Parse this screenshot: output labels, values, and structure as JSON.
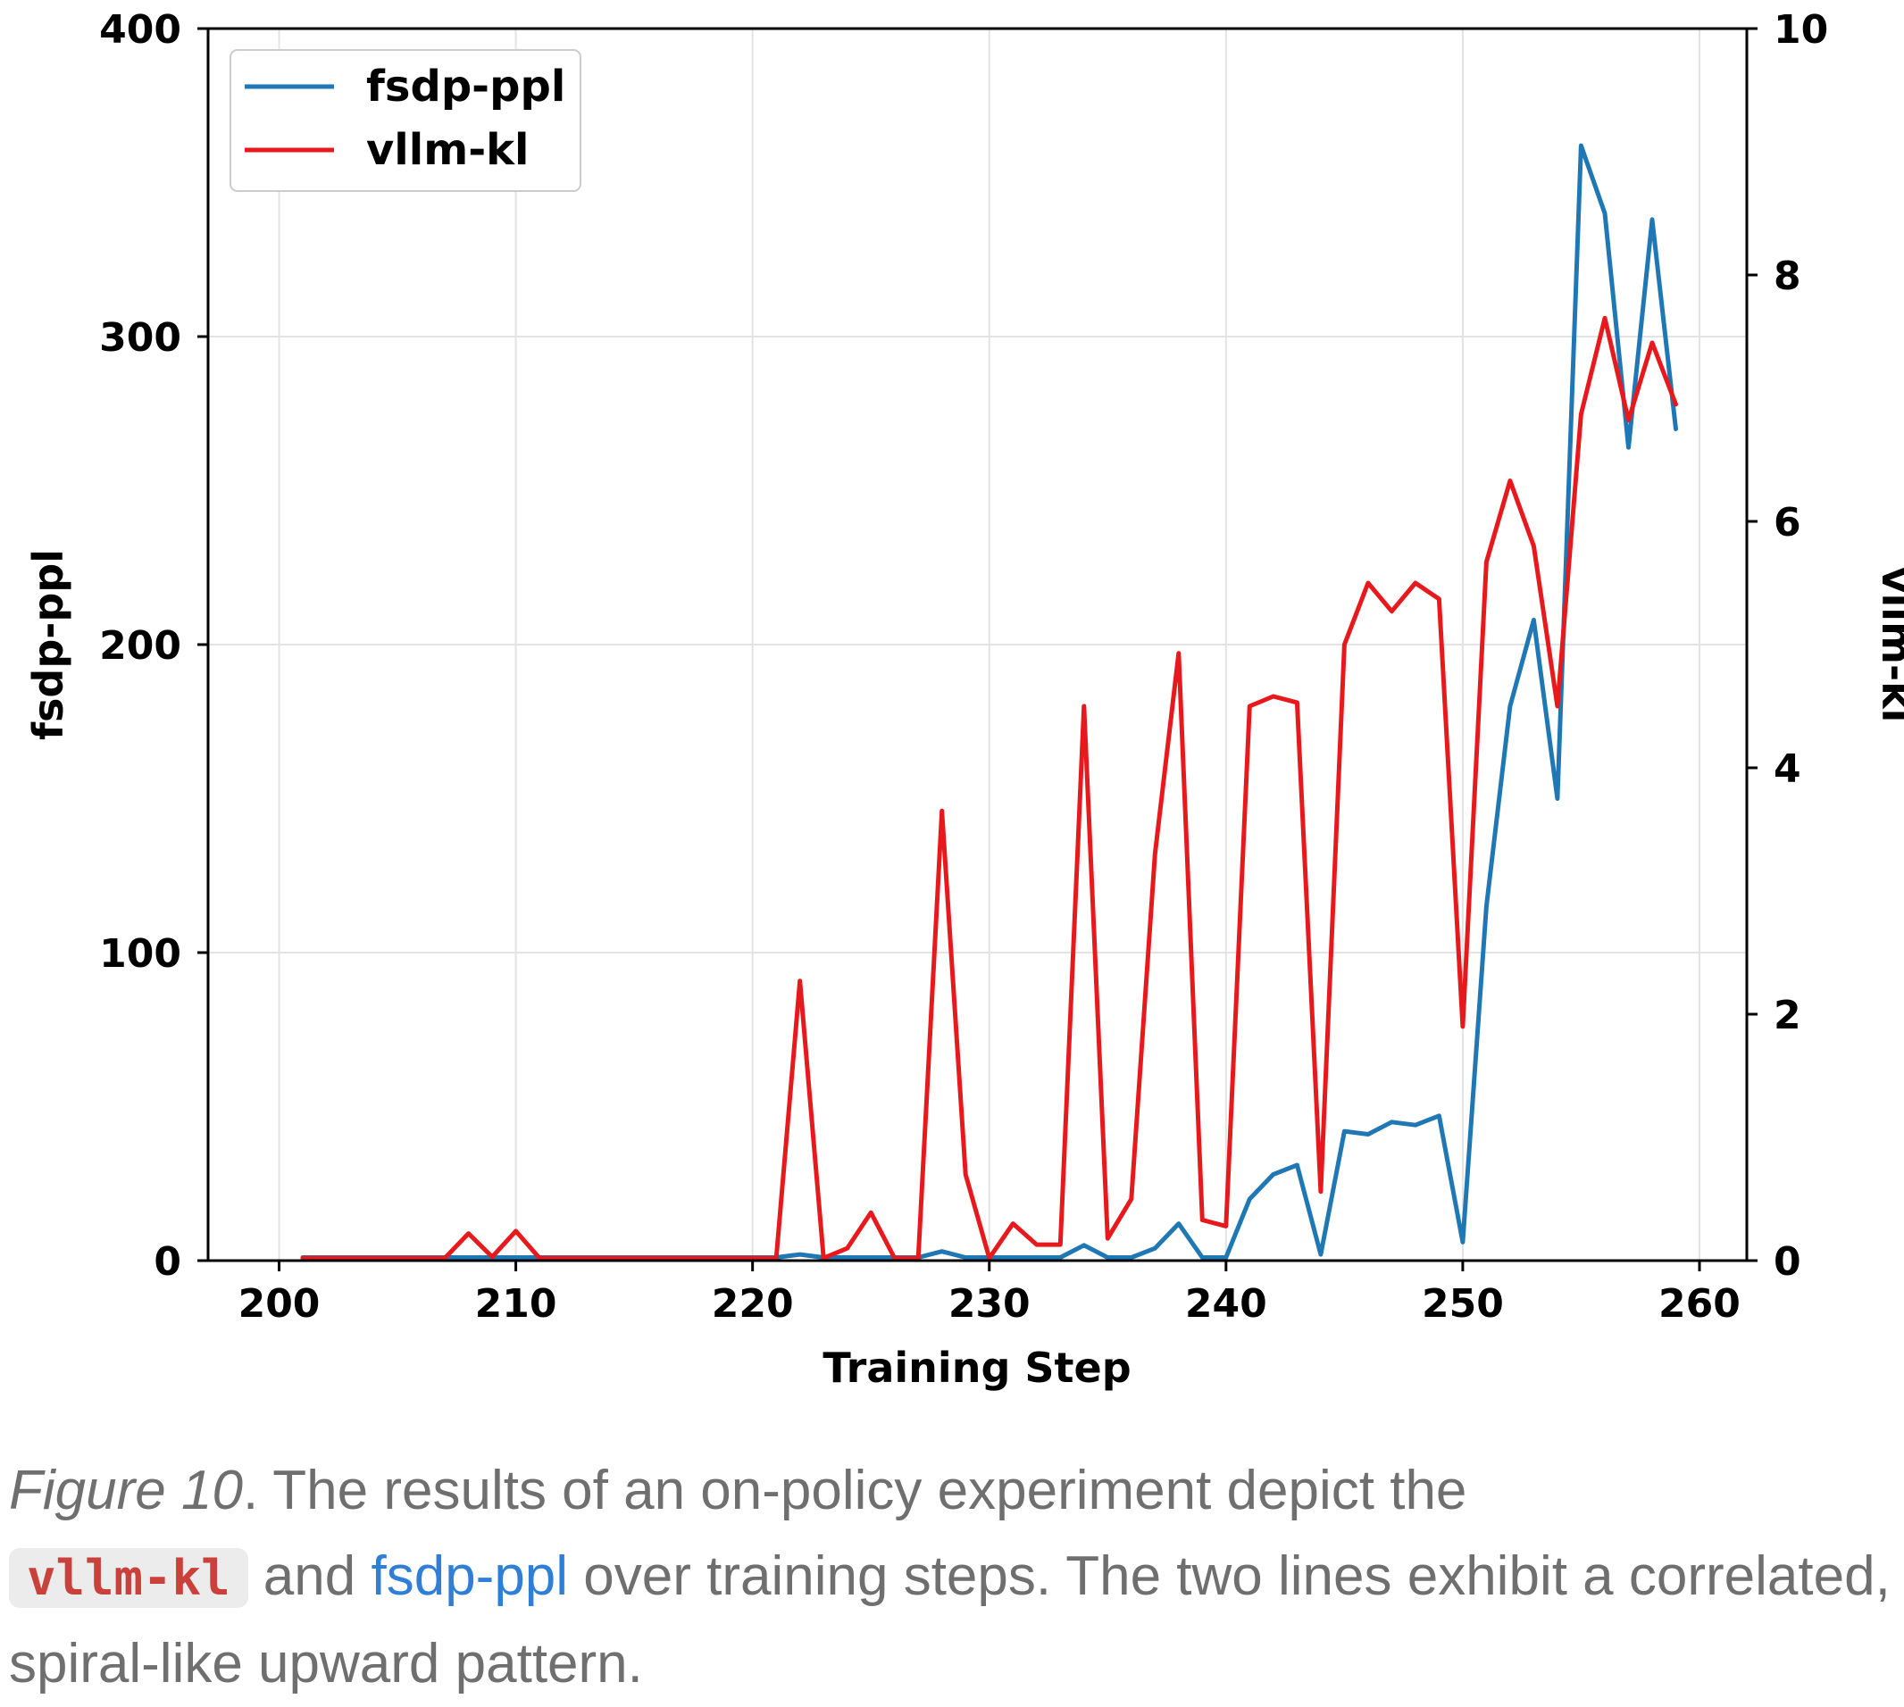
{
  "chart_data": {
    "type": "line",
    "xlabel": "Training Step",
    "ylabel_left": "fsdp-ppl",
    "ylabel_right": "vllm-kl",
    "xlim": [
      197,
      262
    ],
    "ylim_left": [
      0,
      400
    ],
    "ylim_right": [
      0,
      10
    ],
    "xticks": [
      200,
      210,
      220,
      230,
      240,
      250,
      260
    ],
    "yticks_left": [
      0,
      100,
      200,
      300,
      400
    ],
    "yticks_right": [
      0,
      2,
      4,
      6,
      8,
      10
    ],
    "grid": true,
    "legend_position": "top-left",
    "series": [
      {
        "name": "fsdp-ppl",
        "axis": "left",
        "color": "#1f77b4",
        "x": [
          201,
          202,
          203,
          204,
          205,
          206,
          207,
          208,
          209,
          210,
          211,
          212,
          213,
          214,
          215,
          216,
          217,
          218,
          219,
          220,
          221,
          222,
          223,
          224,
          225,
          226,
          227,
          228,
          229,
          230,
          231,
          232,
          233,
          234,
          235,
          236,
          237,
          238,
          239,
          240,
          241,
          242,
          243,
          244,
          245,
          246,
          247,
          248,
          249,
          250,
          251,
          252,
          253,
          254,
          255,
          256,
          257,
          258,
          259
        ],
        "y": [
          1,
          1,
          1,
          1,
          1,
          1,
          1,
          1,
          1,
          1,
          1,
          1,
          1,
          1,
          1,
          1,
          1,
          1,
          1,
          1,
          1,
          2,
          1,
          1,
          1,
          1,
          1,
          3,
          1,
          1,
          1,
          1,
          1,
          5,
          1,
          1,
          4,
          12,
          1,
          1,
          20,
          28,
          31,
          2,
          42,
          41,
          45,
          44,
          47,
          6,
          115,
          180,
          208,
          150,
          362,
          340,
          264,
          338,
          270
        ]
      },
      {
        "name": "vllm-kl",
        "axis": "right",
        "color": "#e8191c",
        "x": [
          201,
          202,
          203,
          204,
          205,
          206,
          207,
          208,
          209,
          210,
          211,
          212,
          213,
          214,
          215,
          216,
          217,
          218,
          219,
          220,
          221,
          222,
          223,
          224,
          225,
          226,
          227,
          228,
          229,
          230,
          231,
          232,
          233,
          234,
          235,
          236,
          237,
          238,
          239,
          240,
          241,
          242,
          243,
          244,
          245,
          246,
          247,
          248,
          249,
          250,
          251,
          252,
          253,
          254,
          255,
          256,
          257,
          258,
          259
        ],
        "y": [
          0.02,
          0.02,
          0.02,
          0.02,
          0.02,
          0.02,
          0.02,
          0.22,
          0.03,
          0.24,
          0.02,
          0.02,
          0.02,
          0.02,
          0.02,
          0.02,
          0.02,
          0.02,
          0.02,
          0.02,
          0.02,
          2.27,
          0.02,
          0.1,
          0.39,
          0.02,
          0.02,
          3.65,
          0.7,
          0.02,
          0.3,
          0.13,
          0.13,
          4.5,
          0.18,
          0.5,
          3.3,
          4.93,
          0.33,
          0.28,
          4.5,
          4.58,
          4.53,
          0.56,
          5.0,
          5.5,
          5.27,
          5.5,
          5.37,
          1.9,
          5.67,
          6.33,
          5.8,
          4.5,
          6.87,
          7.65,
          6.82,
          7.45,
          6.95
        ]
      }
    ]
  },
  "caption": {
    "figure_label": "Figure 10",
    "text_1": ".  The results of an on-policy experiment depict the",
    "code_term": "vllm-kl",
    "text_2": " and ",
    "highlight_term": "fsdp-ppl",
    "text_3": " over training steps. The two lines exhibit a correlated, spiral-like upward pattern."
  }
}
